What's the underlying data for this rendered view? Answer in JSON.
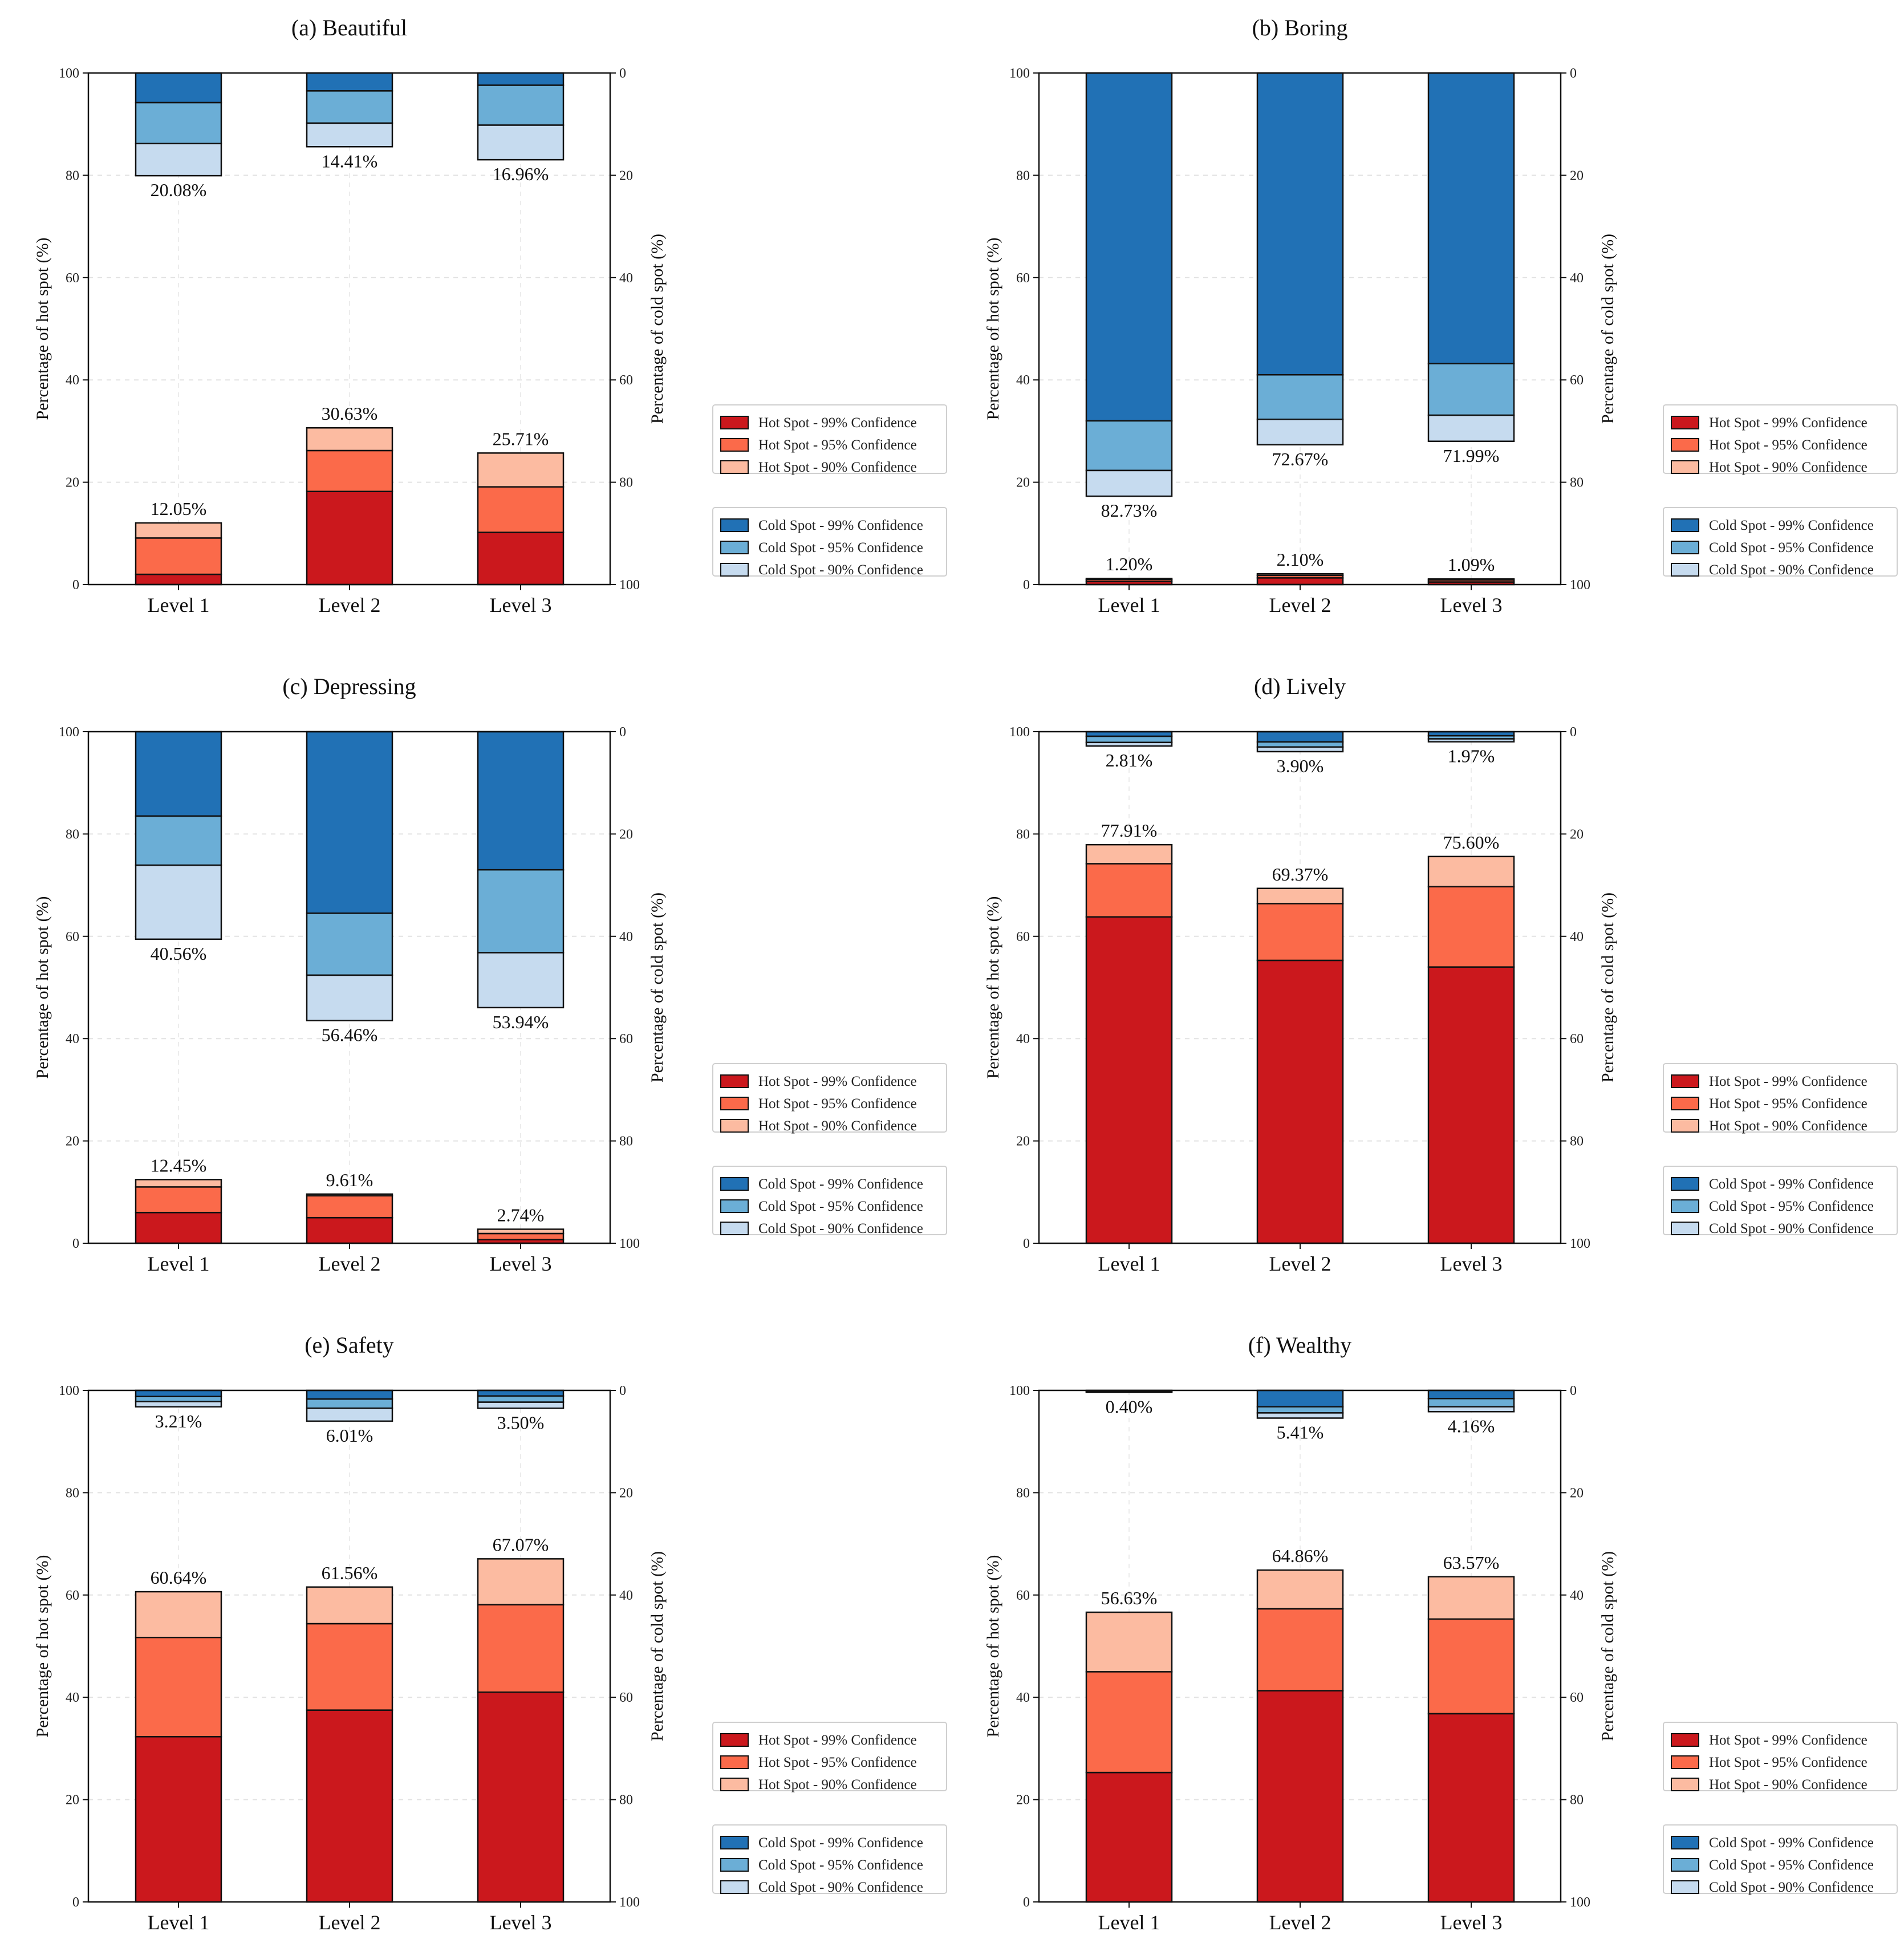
{
  "legend": {
    "hot": [
      "Hot Spot - 99% Confidence",
      "Hot Spot - 95% Confidence",
      "Hot Spot - 90% Confidence"
    ],
    "cold": [
      "Cold Spot - 99% Confidence",
      "Cold Spot - 95% Confidence",
      "Cold Spot - 90% Confidence"
    ]
  },
  "colors": {
    "hot": [
      "#cb181d",
      "#fb6a4a",
      "#fcbba1"
    ],
    "cold": [
      "#2171b5",
      "#6baed6",
      "#c6dbef"
    ]
  },
  "chart_data": [
    {
      "type": "bar",
      "title": "(a) Beautiful",
      "categories": [
        "Level 1",
        "Level 2",
        "Level 3"
      ],
      "ylabel": "Percentage of hot spot (%)",
      "y2label": "Percentage of cold spot (%)",
      "ylim": [
        0,
        100
      ],
      "y2lim": [
        100,
        0
      ],
      "yticks": [
        "0",
        "20",
        "40",
        "60",
        "80",
        "100"
      ],
      "y2ticks": [
        "0",
        "20",
        "40",
        "60",
        "80",
        "100"
      ],
      "hot_series": [
        {
          "name": "Hot Spot - 99% Confidence",
          "values": [
            2.0,
            18.2,
            10.2
          ]
        },
        {
          "name": "Hot Spot - 95% Confidence",
          "values": [
            7.1,
            8.0,
            8.9
          ]
        },
        {
          "name": "Hot Spot - 90% Confidence",
          "values": [
            2.95,
            4.43,
            6.61
          ]
        }
      ],
      "cold_series": [
        {
          "name": "Cold Spot - 99% Confidence",
          "values": [
            5.8,
            3.5,
            2.4
          ]
        },
        {
          "name": "Cold Spot - 95% Confidence",
          "values": [
            8.0,
            6.3,
            7.8
          ]
        },
        {
          "name": "Cold Spot - 90% Confidence",
          "values": [
            6.28,
            4.61,
            6.76
          ]
        }
      ],
      "hot_labels": [
        "12.05%",
        "30.63%",
        "25.71%"
      ],
      "cold_labels": [
        "20.08%",
        "14.41%",
        "16.96%"
      ]
    },
    {
      "type": "bar",
      "title": "(b) Boring",
      "categories": [
        "Level 1",
        "Level 2",
        "Level 3"
      ],
      "ylabel": "Percentage of hot spot (%)",
      "y2label": "Percentage of cold spot (%)",
      "ylim": [
        0,
        100
      ],
      "y2lim": [
        100,
        0
      ],
      "yticks": [
        "0",
        "20",
        "40",
        "60",
        "80",
        "100"
      ],
      "y2ticks": [
        "0",
        "20",
        "40",
        "60",
        "80",
        "100"
      ],
      "hot_series": [
        {
          "name": "Hot Spot - 99% Confidence",
          "values": [
            0.6,
            1.3,
            0.5
          ]
        },
        {
          "name": "Hot Spot - 95% Confidence",
          "values": [
            0.4,
            0.5,
            0.4
          ]
        },
        {
          "name": "Hot Spot - 90% Confidence",
          "values": [
            0.2,
            0.3,
            0.19
          ]
        }
      ],
      "cold_series": [
        {
          "name": "Cold Spot - 99% Confidence",
          "values": [
            68.0,
            59.0,
            56.8
          ]
        },
        {
          "name": "Cold Spot - 95% Confidence",
          "values": [
            9.7,
            8.7,
            10.1
          ]
        },
        {
          "name": "Cold Spot - 90% Confidence",
          "values": [
            5.03,
            4.97,
            5.09
          ]
        }
      ],
      "hot_labels": [
        "1.20%",
        "2.10%",
        "1.09%"
      ],
      "cold_labels": [
        "82.73%",
        "72.67%",
        "71.99%"
      ]
    },
    {
      "type": "bar",
      "title": "(c) Depressing",
      "categories": [
        "Level 1",
        "Level 2",
        "Level 3"
      ],
      "ylabel": "Percentage of hot spot (%)",
      "y2label": "Percentage of cold spot (%)",
      "ylim": [
        0,
        100
      ],
      "y2lim": [
        100,
        0
      ],
      "yticks": [
        "0",
        "20",
        "40",
        "60",
        "80",
        "100"
      ],
      "y2ticks": [
        "0",
        "20",
        "40",
        "60",
        "80",
        "100"
      ],
      "hot_series": [
        {
          "name": "Hot Spot - 99% Confidence",
          "values": [
            6.0,
            5.0,
            0.7
          ]
        },
        {
          "name": "Hot Spot - 95% Confidence",
          "values": [
            5.0,
            4.3,
            1.2
          ]
        },
        {
          "name": "Hot Spot - 90% Confidence",
          "values": [
            1.45,
            0.31,
            0.84
          ]
        }
      ],
      "cold_series": [
        {
          "name": "Cold Spot - 99% Confidence",
          "values": [
            16.5,
            35.5,
            27.0
          ]
        },
        {
          "name": "Cold Spot - 95% Confidence",
          "values": [
            9.6,
            12.1,
            16.2
          ]
        },
        {
          "name": "Cold Spot - 90% Confidence",
          "values": [
            14.46,
            8.86,
            10.74
          ]
        }
      ],
      "hot_labels": [
        "12.45%",
        "9.61%",
        "2.74%"
      ],
      "cold_labels": [
        "40.56%",
        "56.46%",
        "53.94%"
      ]
    },
    {
      "type": "bar",
      "title": "(d) Lively",
      "categories": [
        "Level 1",
        "Level 2",
        "Level 3"
      ],
      "ylabel": "Percentage of hot spot (%)",
      "y2label": "Percentage of cold spot (%)",
      "ylim": [
        0,
        100
      ],
      "y2lim": [
        100,
        0
      ],
      "yticks": [
        "0",
        "20",
        "40",
        "60",
        "80",
        "100"
      ],
      "y2ticks": [
        "0",
        "20",
        "40",
        "60",
        "80",
        "100"
      ],
      "hot_series": [
        {
          "name": "Hot Spot - 99% Confidence",
          "values": [
            63.8,
            55.3,
            54.0
          ]
        },
        {
          "name": "Hot Spot - 95% Confidence",
          "values": [
            10.4,
            11.1,
            15.7
          ]
        },
        {
          "name": "Hot Spot - 90% Confidence",
          "values": [
            3.71,
            2.97,
            5.9
          ]
        }
      ],
      "cold_series": [
        {
          "name": "Cold Spot - 99% Confidence",
          "values": [
            0.9,
            2.0,
            0.8
          ]
        },
        {
          "name": "Cold Spot - 95% Confidence",
          "values": [
            1.2,
            1.0,
            0.6
          ]
        },
        {
          "name": "Cold Spot - 90% Confidence",
          "values": [
            0.71,
            0.9,
            0.57
          ]
        }
      ],
      "hot_labels": [
        "77.91%",
        "69.37%",
        "75.60%"
      ],
      "cold_labels": [
        "2.81%",
        "3.90%",
        "1.97%"
      ]
    },
    {
      "type": "bar",
      "title": "(e) Safety",
      "categories": [
        "Level 1",
        "Level 2",
        "Level 3"
      ],
      "ylabel": "Percentage of hot spot (%)",
      "y2label": "Percentage of cold spot (%)",
      "ylim": [
        0,
        100
      ],
      "y2lim": [
        100,
        0
      ],
      "yticks": [
        "0",
        "20",
        "40",
        "60",
        "80",
        "100"
      ],
      "y2ticks": [
        "0",
        "20",
        "40",
        "60",
        "80",
        "100"
      ],
      "hot_series": [
        {
          "name": "Hot Spot - 99% Confidence",
          "values": [
            32.3,
            37.5,
            41.0
          ]
        },
        {
          "name": "Hot Spot - 95% Confidence",
          "values": [
            19.4,
            16.9,
            17.1
          ]
        },
        {
          "name": "Hot Spot - 90% Confidence",
          "values": [
            8.94,
            7.16,
            8.97
          ]
        }
      ],
      "cold_series": [
        {
          "name": "Cold Spot - 99% Confidence",
          "values": [
            1.2,
            1.7,
            1.1
          ]
        },
        {
          "name": "Cold Spot - 95% Confidence",
          "values": [
            1.0,
            1.8,
            1.2
          ]
        },
        {
          "name": "Cold Spot - 90% Confidence",
          "values": [
            1.01,
            2.51,
            1.2
          ]
        }
      ],
      "hot_labels": [
        "60.64%",
        "61.56%",
        "67.07%"
      ],
      "cold_labels": [
        "3.21%",
        "6.01%",
        "3.50%"
      ]
    },
    {
      "type": "bar",
      "title": "(f) Wealthy",
      "categories": [
        "Level 1",
        "Level 2",
        "Level 3"
      ],
      "ylabel": "Percentage of hot spot (%)",
      "y2label": "Percentage of cold spot (%)",
      "ylim": [
        0,
        100
      ],
      "y2lim": [
        100,
        0
      ],
      "yticks": [
        "0",
        "20",
        "40",
        "60",
        "80",
        "100"
      ],
      "y2ticks": [
        "0",
        "20",
        "40",
        "60",
        "80",
        "100"
      ],
      "hot_series": [
        {
          "name": "Hot Spot - 99% Confidence",
          "values": [
            25.3,
            41.3,
            36.8
          ]
        },
        {
          "name": "Hot Spot - 95% Confidence",
          "values": [
            19.7,
            16.0,
            18.5
          ]
        },
        {
          "name": "Hot Spot - 90% Confidence",
          "values": [
            11.63,
            7.56,
            8.27
          ]
        }
      ],
      "cold_series": [
        {
          "name": "Cold Spot - 99% Confidence",
          "values": [
            0.2,
            3.2,
            1.6
          ]
        },
        {
          "name": "Cold Spot - 95% Confidence",
          "values": [
            0.1,
            1.2,
            1.6
          ]
        },
        {
          "name": "Cold Spot - 90% Confidence",
          "values": [
            0.1,
            1.01,
            0.96
          ]
        }
      ],
      "hot_labels": [
        "56.63%",
        "64.86%",
        "63.57%"
      ],
      "cold_labels": [
        "0.40%",
        "5.41%",
        "4.16%"
      ]
    }
  ]
}
